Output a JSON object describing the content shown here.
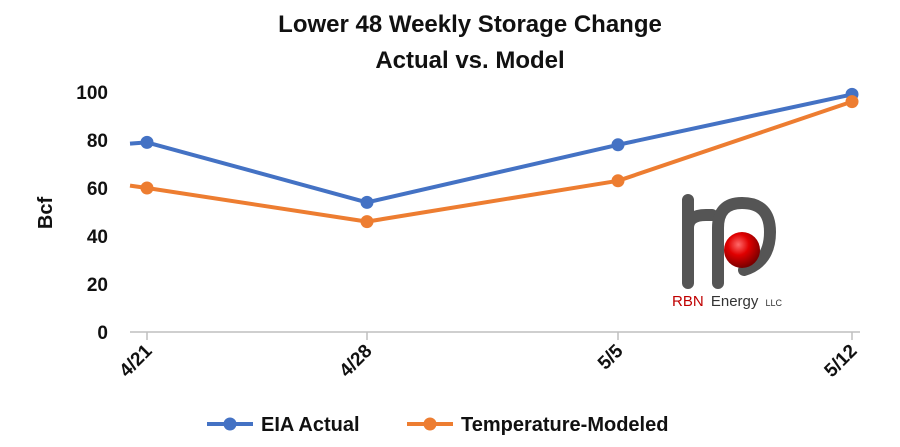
{
  "chart_data": {
    "type": "line",
    "title": "Lower 48 Weekly Storage Change",
    "subtitle": "Actual vs. Model",
    "xlabel": "",
    "ylabel": "Bcf",
    "categories": [
      "4/21",
      "4/28",
      "5/5",
      "5/12"
    ],
    "ylim": [
      0,
      100
    ],
    "yticks": [
      0,
      20,
      40,
      60,
      80,
      100
    ],
    "grid": false,
    "legend": "bottom",
    "series": [
      {
        "name": "EIA Actual",
        "color": "#4472C4",
        "values": [
          79,
          54,
          78,
          99
        ],
        "start_value": 78.5
      },
      {
        "name": "Temperature-Modeled",
        "color": "#ED7D31",
        "values": [
          60,
          46,
          63,
          96
        ],
        "start_value": 61
      }
    ]
  },
  "logo": {
    "brand": "RBN",
    "name": "Energy",
    "suffix": "LLC",
    "icon": "rbn-pipe-logo-icon",
    "colors": {
      "pipe": "#555555",
      "ball": "#E00000",
      "brand_text": "#C00000",
      "name_text": "#333333"
    }
  }
}
